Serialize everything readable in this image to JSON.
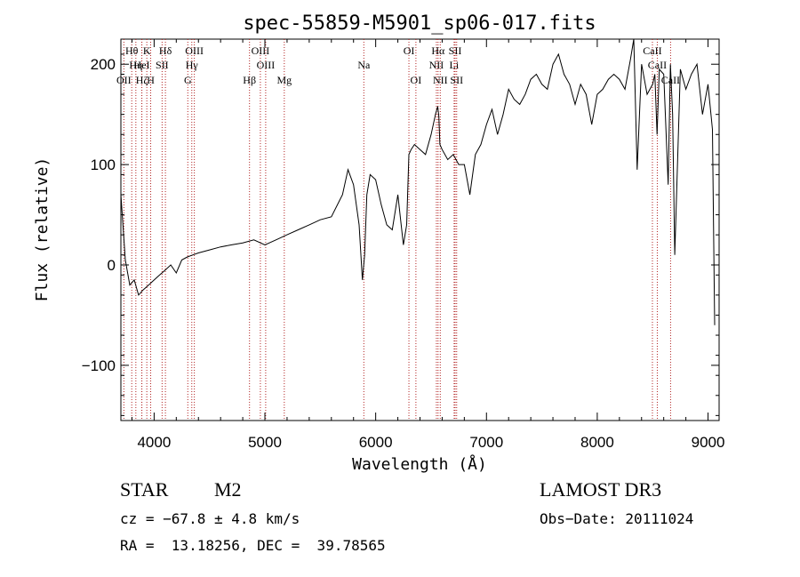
{
  "chart_data": {
    "type": "line",
    "title": "spec-55859-M5901_sp06-017.fits",
    "xlabel": "Wavelength (Å)",
    "ylabel": "Flux (relative)",
    "xlim": [
      3700,
      9100
    ],
    "ylim": [
      -155,
      225
    ],
    "x_ticks": [
      4000,
      5000,
      6000,
      7000,
      8000,
      9000
    ],
    "x_tick_labels": [
      "4000",
      "5000",
      "6000",
      "7000",
      "8000",
      "9000"
    ],
    "y_ticks": [
      -100,
      0,
      100,
      200
    ],
    "y_tick_labels": [
      "−100",
      "0",
      "100",
      "200"
    ],
    "line_color": "#000000",
    "marker_color": "#b22222",
    "series": [
      {
        "name": "flux",
        "x": [
          3700,
          3740,
          3780,
          3820,
          3860,
          3900,
          3950,
          4000,
          4050,
          4100,
          4150,
          4200,
          4250,
          4300,
          4350,
          4400,
          4500,
          4600,
          4700,
          4800,
          4900,
          5000,
          5100,
          5200,
          5300,
          5400,
          5500,
          5600,
          5700,
          5750,
          5800,
          5850,
          5880,
          5900,
          5920,
          5950,
          6000,
          6050,
          6100,
          6150,
          6200,
          6250,
          6280,
          6300,
          6320,
          6350,
          6400,
          6450,
          6500,
          6540,
          6560,
          6570,
          6580,
          6600,
          6650,
          6700,
          6750,
          6800,
          6850,
          6900,
          6950,
          7000,
          7050,
          7100,
          7150,
          7200,
          7250,
          7300,
          7350,
          7400,
          7450,
          7500,
          7550,
          7600,
          7650,
          7700,
          7750,
          7800,
          7850,
          7900,
          7950,
          8000,
          8050,
          8100,
          8150,
          8200,
          8250,
          8300,
          8330,
          8360,
          8400,
          8450,
          8500,
          8520,
          8540,
          8560,
          8600,
          8640,
          8660,
          8680,
          8700,
          8750,
          8800,
          8850,
          8900,
          8950,
          9000,
          9040,
          9060
        ],
        "y": [
          70,
          5,
          -20,
          -15,
          -30,
          -25,
          -20,
          -15,
          -10,
          -5,
          0,
          -8,
          5,
          8,
          10,
          12,
          15,
          18,
          20,
          22,
          25,
          20,
          25,
          30,
          35,
          40,
          45,
          48,
          70,
          95,
          80,
          40,
          -15,
          10,
          70,
          90,
          85,
          60,
          40,
          35,
          70,
          20,
          40,
          110,
          115,
          120,
          115,
          110,
          130,
          150,
          158,
          148,
          120,
          115,
          105,
          110,
          100,
          100,
          70,
          110,
          120,
          140,
          155,
          130,
          150,
          175,
          165,
          160,
          170,
          185,
          190,
          180,
          175,
          200,
          210,
          190,
          180,
          160,
          180,
          170,
          140,
          170,
          175,
          185,
          190,
          185,
          175,
          205,
          225,
          95,
          200,
          170,
          180,
          190,
          130,
          195,
          190,
          80,
          200,
          150,
          10,
          195,
          175,
          190,
          200,
          150,
          180,
          135,
          -60
        ]
      }
    ],
    "spectral_lines": [
      {
        "label": "Hθ",
        "x": 3798,
        "row": 0
      },
      {
        "label": "K",
        "x": 3934,
        "row": 0
      },
      {
        "label": "Hδ",
        "x": 4102,
        "row": 0
      },
      {
        "label": "OIII",
        "x": 4363,
        "row": 0
      },
      {
        "label": "OIII",
        "x": 4959,
        "row": 0
      },
      {
        "label": "OI",
        "x": 6300,
        "row": 0
      },
      {
        "label": "Hα",
        "x": 6563,
        "row": 0
      },
      {
        "label": "SII",
        "x": 6717,
        "row": 0
      },
      {
        "label": "CaII",
        "x": 8498,
        "row": 0
      },
      {
        "label": "Hη",
        "x": 3835,
        "row": 1
      },
      {
        "label": "HeI",
        "x": 3889,
        "row": 1
      },
      {
        "label": "SII",
        "x": 4072,
        "row": 1
      },
      {
        "label": "Hγ",
        "x": 4340,
        "row": 1
      },
      {
        "label": "OIII",
        "x": 5007,
        "row": 1
      },
      {
        "label": "Na",
        "x": 5893,
        "row": 1
      },
      {
        "label": "NII",
        "x": 6548,
        "row": 1
      },
      {
        "label": "Li",
        "x": 6708,
        "row": 1
      },
      {
        "label": "CaII",
        "x": 8542,
        "row": 1
      },
      {
        "label": "OII",
        "x": 3727,
        "row": 2
      },
      {
        "label": "Hζ",
        "x": 3889,
        "row": 2
      },
      {
        "label": "H",
        "x": 3969,
        "row": 2
      },
      {
        "label": "G",
        "x": 4304,
        "row": 2
      },
      {
        "label": "Hβ",
        "x": 4861,
        "row": 2
      },
      {
        "label": "Mg",
        "x": 5175,
        "row": 2
      },
      {
        "label": "OI",
        "x": 6363,
        "row": 2
      },
      {
        "label": "NII",
        "x": 6583,
        "row": 2
      },
      {
        "label": "SII",
        "x": 6731,
        "row": 2
      },
      {
        "label": "CaII",
        "x": 8662,
        "row": 2
      }
    ]
  },
  "info": {
    "object_class": "STAR",
    "subclass": "M2",
    "survey": "LAMOST DR3",
    "redshift": "cz = −67.8 ± 4.8 km/s",
    "obs_date": "Obs−Date: 20111024",
    "coordinates": "RA =  13.18256, DEC =  39.78565"
  }
}
